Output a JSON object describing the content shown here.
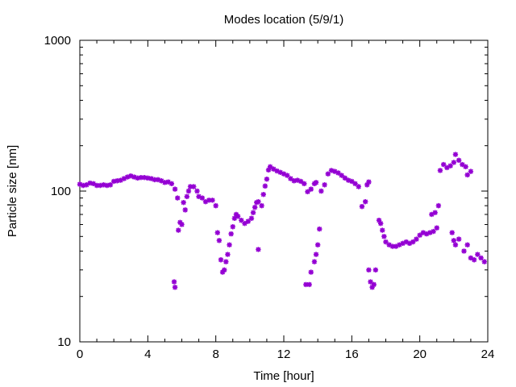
{
  "chart_data": {
    "type": "scatter",
    "title": "Modes location (5/9/1)",
    "xlabel": "Time [hour]",
    "ylabel": "Particle size [nm]",
    "xlim": [
      0,
      24
    ],
    "ylim": [
      10,
      1000
    ],
    "yscale": "log",
    "xticks": [
      0,
      4,
      8,
      12,
      16,
      20,
      24
    ],
    "xtick_labels": [
      "0",
      "4",
      "8",
      "12",
      "16",
      "20",
      "24"
    ],
    "yticks": [
      10,
      100,
      1000
    ],
    "ytick_labels": [
      "10",
      "100",
      "1000"
    ],
    "grid": false,
    "legend": "none",
    "marker_color": "#9400d3",
    "series": [
      {
        "points": [
          [
            0.0,
            111
          ],
          [
            0.2,
            109
          ],
          [
            0.4,
            110
          ],
          [
            0.6,
            113
          ],
          [
            0.8,
            112
          ],
          [
            1.0,
            109
          ],
          [
            1.2,
            109
          ],
          [
            1.4,
            110
          ],
          [
            1.6,
            109
          ],
          [
            1.8,
            110
          ],
          [
            2.0,
            116
          ],
          [
            2.2,
            117
          ],
          [
            2.4,
            118
          ],
          [
            2.6,
            121
          ],
          [
            2.8,
            124
          ],
          [
            3.0,
            126
          ],
          [
            3.2,
            124
          ],
          [
            3.4,
            122
          ],
          [
            3.6,
            123
          ],
          [
            3.8,
            123
          ],
          [
            4.0,
            122
          ],
          [
            4.2,
            121
          ],
          [
            4.4,
            119
          ],
          [
            4.6,
            119
          ],
          [
            4.8,
            117
          ],
          [
            5.0,
            114
          ],
          [
            5.2,
            115
          ],
          [
            5.4,
            112
          ],
          [
            5.55,
            25
          ],
          [
            5.6,
            23
          ],
          [
            5.6,
            103
          ],
          [
            5.75,
            90
          ],
          [
            5.8,
            55
          ],
          [
            5.9,
            62
          ],
          [
            6.0,
            60
          ],
          [
            6.1,
            84
          ],
          [
            6.2,
            75
          ],
          [
            6.3,
            92
          ],
          [
            6.4,
            100
          ],
          [
            6.5,
            107
          ],
          [
            6.7,
            107
          ],
          [
            6.9,
            100
          ],
          [
            7.0,
            92
          ],
          [
            7.2,
            90
          ],
          [
            7.4,
            85
          ],
          [
            7.6,
            87
          ],
          [
            7.8,
            87
          ],
          [
            8.0,
            80
          ],
          [
            8.1,
            53
          ],
          [
            8.2,
            47
          ],
          [
            8.3,
            35
          ],
          [
            8.4,
            29
          ],
          [
            8.5,
            30
          ],
          [
            8.6,
            34
          ],
          [
            8.7,
            38
          ],
          [
            8.8,
            44
          ],
          [
            8.9,
            52
          ],
          [
            9.0,
            58
          ],
          [
            9.1,
            66
          ],
          [
            9.2,
            70
          ],
          [
            9.3,
            68
          ],
          [
            9.5,
            64
          ],
          [
            9.7,
            61
          ],
          [
            9.9,
            63
          ],
          [
            10.1,
            66
          ],
          [
            10.2,
            72
          ],
          [
            10.3,
            78
          ],
          [
            10.4,
            84
          ],
          [
            10.5,
            85
          ],
          [
            10.5,
            41
          ],
          [
            10.7,
            80
          ],
          [
            10.8,
            95
          ],
          [
            10.9,
            108
          ],
          [
            11.0,
            120
          ],
          [
            11.1,
            138
          ],
          [
            11.2,
            145
          ],
          [
            11.4,
            140
          ],
          [
            11.6,
            136
          ],
          [
            11.8,
            133
          ],
          [
            12.0,
            130
          ],
          [
            12.2,
            127
          ],
          [
            12.4,
            121
          ],
          [
            12.6,
            117
          ],
          [
            12.8,
            118
          ],
          [
            13.0,
            116
          ],
          [
            13.2,
            112
          ],
          [
            13.4,
            99
          ],
          [
            13.6,
            103
          ],
          [
            13.3,
            24
          ],
          [
            13.5,
            24
          ],
          [
            13.6,
            29
          ],
          [
            13.8,
            34
          ],
          [
            13.9,
            38
          ],
          [
            14.0,
            44
          ],
          [
            14.1,
            56
          ],
          [
            13.8,
            112
          ],
          [
            13.9,
            114
          ],
          [
            14.2,
            100
          ],
          [
            14.4,
            110
          ],
          [
            14.6,
            130
          ],
          [
            14.8,
            137
          ],
          [
            15.0,
            135
          ],
          [
            15.2,
            132
          ],
          [
            15.4,
            127
          ],
          [
            15.6,
            122
          ],
          [
            15.8,
            118
          ],
          [
            16.0,
            116
          ],
          [
            16.2,
            112
          ],
          [
            16.4,
            107
          ],
          [
            16.6,
            79
          ],
          [
            16.8,
            85
          ],
          [
            16.9,
            110
          ],
          [
            17.0,
            115
          ],
          [
            17.0,
            30
          ],
          [
            17.1,
            25
          ],
          [
            17.2,
            23
          ],
          [
            17.3,
            24
          ],
          [
            17.4,
            30
          ],
          [
            17.6,
            64
          ],
          [
            17.7,
            61
          ],
          [
            17.8,
            55
          ],
          [
            17.9,
            50
          ],
          [
            18.0,
            46
          ],
          [
            18.2,
            44
          ],
          [
            18.4,
            43
          ],
          [
            18.6,
            43
          ],
          [
            18.8,
            44
          ],
          [
            19.0,
            45
          ],
          [
            19.2,
            46
          ],
          [
            19.4,
            45
          ],
          [
            19.6,
            46
          ],
          [
            19.8,
            48
          ],
          [
            20.0,
            51
          ],
          [
            20.2,
            53
          ],
          [
            20.4,
            52
          ],
          [
            20.6,
            53
          ],
          [
            20.8,
            54
          ],
          [
            20.7,
            70
          ],
          [
            20.9,
            72
          ],
          [
            21.0,
            57
          ],
          [
            21.1,
            80
          ],
          [
            21.2,
            137
          ],
          [
            21.4,
            150
          ],
          [
            21.6,
            143
          ],
          [
            21.8,
            147
          ],
          [
            22.0,
            155
          ],
          [
            22.1,
            175
          ],
          [
            22.3,
            160
          ],
          [
            22.5,
            150
          ],
          [
            22.7,
            145
          ],
          [
            22.8,
            128
          ],
          [
            23.0,
            135
          ],
          [
            21.9,
            53
          ],
          [
            22.0,
            47
          ],
          [
            22.1,
            44
          ],
          [
            22.3,
            48
          ],
          [
            22.6,
            40
          ],
          [
            22.8,
            44
          ],
          [
            23.0,
            36
          ],
          [
            23.2,
            35
          ],
          [
            23.4,
            38
          ],
          [
            23.6,
            36
          ],
          [
            23.8,
            34
          ]
        ]
      }
    ]
  }
}
